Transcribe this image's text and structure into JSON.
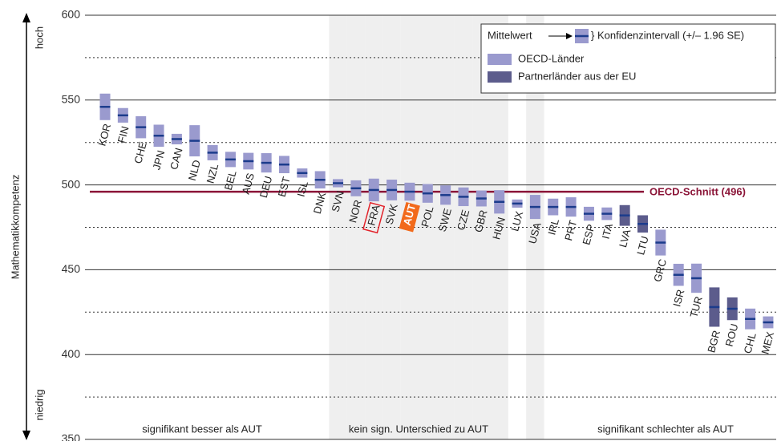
{
  "chart_data": {
    "type": "errorbar",
    "y_label": "Mathematikkompetenz",
    "axis_top": "hoch",
    "axis_bottom": "niedrig",
    "ylim": [
      350,
      600
    ],
    "yticks": [
      350,
      400,
      450,
      500,
      550,
      600
    ],
    "minor_yticks": [
      375,
      425,
      475,
      525,
      575
    ],
    "categories": [
      "KOR",
      "FIN",
      "CHE",
      "JPN",
      "CAN",
      "NLD",
      "NZL",
      "BEL",
      "AUS",
      "DEU",
      "EST",
      "ISL",
      "DNK",
      "SVN",
      "NOR",
      "FRA",
      "SVK",
      "AUT",
      "POL",
      "SWE",
      "CZE",
      "GBR",
      "HUN",
      "LUX",
      "USA",
      "IRL",
      "PRT",
      "ESP",
      "ITA",
      "LVA",
      "LTU",
      "GRC",
      "ISR",
      "TUR",
      "BGR",
      "ROU",
      "CHL",
      "MEX"
    ],
    "values": [
      546,
      541,
      534,
      529,
      527,
      526,
      519,
      515,
      514,
      513,
      512,
      507,
      503,
      501,
      498,
      497,
      497,
      496,
      495,
      494,
      493,
      492,
      490,
      489,
      487,
      487,
      487,
      483,
      483,
      482,
      477,
      466,
      447,
      445,
      428,
      427,
      421,
      419
    ],
    "errors": [
      7.8,
      4.3,
      6.5,
      6.5,
      3.1,
      9.2,
      4.5,
      4.5,
      4.9,
      5.7,
      5.1,
      2.7,
      5.1,
      2.4,
      4.7,
      6.7,
      6.1,
      5.3,
      5.5,
      5.7,
      5.5,
      4.7,
      6.9,
      2.4,
      7.1,
      4.9,
      5.7,
      4.1,
      3.7,
      6.1,
      5.1,
      7.6,
      6.5,
      8.6,
      11.6,
      6.7,
      6.1,
      3.5
    ],
    "group": [
      0,
      0,
      0,
      0,
      0,
      0,
      0,
      0,
      0,
      0,
      0,
      0,
      0,
      0,
      0,
      0,
      0,
      0,
      0,
      0,
      0,
      0,
      0,
      0,
      0,
      0,
      0,
      0,
      0,
      1,
      1,
      0,
      0,
      0,
      1,
      1,
      0,
      0
    ],
    "no_difference": [
      false,
      false,
      false,
      false,
      false,
      false,
      false,
      false,
      false,
      false,
      false,
      false,
      false,
      true,
      true,
      true,
      true,
      true,
      true,
      true,
      true,
      true,
      true,
      false,
      true,
      false,
      false,
      false,
      false,
      false,
      false,
      false,
      false,
      false,
      false,
      false,
      false,
      false
    ],
    "boxed": "FRA",
    "highlighted": "AUT",
    "mean_color": "#1c3c8c",
    "legend": [
      {
        "name": "OECD-Länder",
        "color": "#9a9ace"
      },
      {
        "name": "Partnerländer aus der EU",
        "color": "#5c5c8c"
      }
    ],
    "legend_mean": "Mittelwert",
    "legend_ci": "} Konfidenzintervall (+/– 1.96 SE)",
    "reference": {
      "value": 496,
      "label": "OECD-Schnitt (496)",
      "color": "#8b1538"
    },
    "regions": [
      "signifikant besser als AUT",
      "kein sign. Unterschied zu AUT",
      "signifikant schlechter als AUT"
    ]
  }
}
